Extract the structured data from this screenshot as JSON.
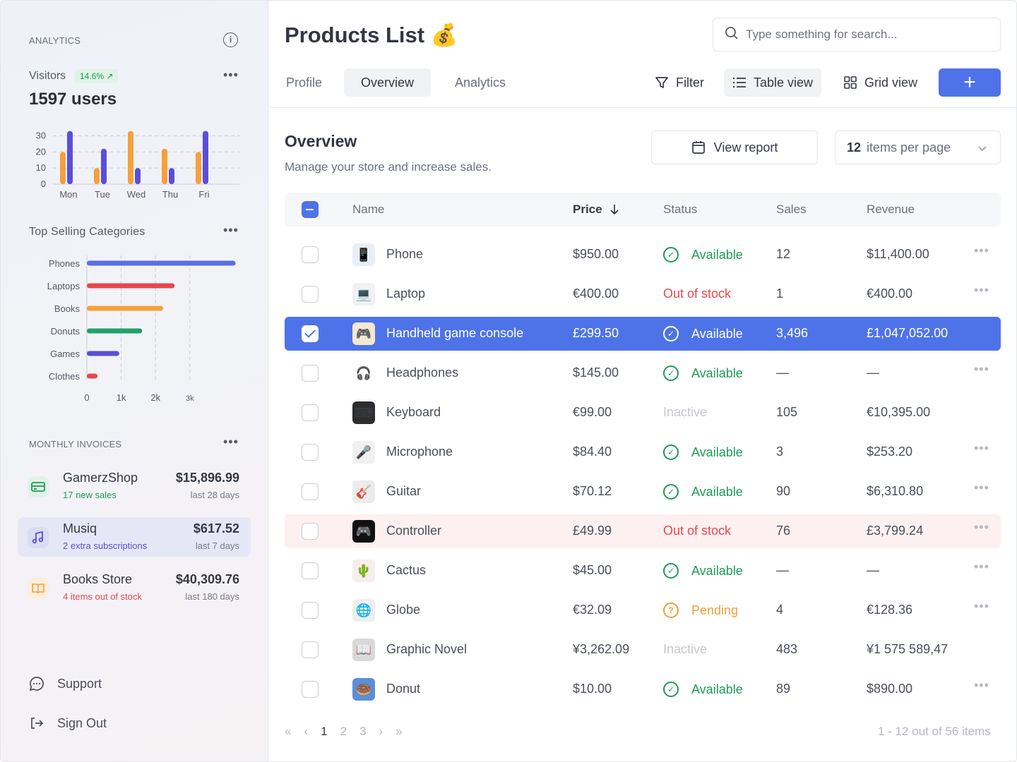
{
  "sidebar": {
    "analytics_title": "ANALYTICS",
    "visitors_label": "Visitors",
    "visitors_change": "14.6% ↗",
    "visitors_value": "1597 users",
    "categories_title": "Top Selling Categories",
    "invoices_title": "MONTHLY INVOICES",
    "invoices": [
      {
        "name": "GamerzShop",
        "sub": "17 new sales",
        "amount": "$15,896.99",
        "period": "last 28 days",
        "sub_color": "#1f9a56",
        "icon": "credit-card-icon"
      },
      {
        "name": "Musiq",
        "sub": "2 extra subscriptions",
        "amount": "$617.52",
        "period": "last 7 days",
        "sub_color": "#5b4fd6",
        "icon": "music-note-icon"
      },
      {
        "name": "Books Store",
        "sub": "4 items out of stock",
        "amount": "$40,309.76",
        "period": "last 180 days",
        "sub_color": "#e5484d",
        "icon": "book-icon"
      }
    ],
    "support_label": "Support",
    "signout_label": "Sign Out"
  },
  "chart_data": [
    {
      "type": "bar",
      "categories": [
        "Mon",
        "Tue",
        "Wed",
        "Thu",
        "Fri"
      ],
      "series": [
        {
          "values": [
            20,
            10,
            33,
            22,
            20
          ],
          "color": "#f5a03c"
        },
        {
          "values": [
            33,
            22,
            10,
            10,
            33
          ],
          "color": "#5b4fd6"
        }
      ],
      "yticks": [
        0,
        10,
        20,
        30
      ],
      "ylim": [
        0,
        35
      ],
      "grid": true
    },
    {
      "type": "bar",
      "orientation": "horizontal",
      "categories": [
        "Phones",
        "Laptops",
        "Books",
        "Donuts",
        "Games",
        "Clothes"
      ],
      "values": [
        3900,
        2300,
        2000,
        1450,
        850,
        280
      ],
      "colors": [
        "#5b6ee8",
        "#e5484d",
        "#f5a03c",
        "#22a06b",
        "#5b4fd6",
        "#e5484d"
      ],
      "xticks": [
        "0",
        "1k",
        "2k",
        "3k"
      ],
      "xlim": [
        0,
        4000
      ],
      "grid": true
    }
  ],
  "main": {
    "title": "Products List 💰",
    "search_placeholder": "Type something for search...",
    "tabs": [
      "Profile",
      "Overview",
      "Analytics"
    ],
    "filter_label": "Filter",
    "table_view_label": "Table view",
    "grid_view_label": "Grid view",
    "add_label": "+",
    "overview_title": "Overview",
    "overview_subtitle": "Manage your store and increase sales.",
    "view_report_label": "View report",
    "per_page_count": "12",
    "per_page_label": "items per page",
    "columns": {
      "name": "Name",
      "price": "Price",
      "status": "Status",
      "sales": "Sales",
      "revenue": "Revenue"
    },
    "rows": [
      {
        "name": "Phone",
        "price": "$950.00",
        "status": "Available",
        "status_type": "available",
        "sales": "12",
        "revenue": "$11,400.00",
        "thumb": "📱",
        "thumb_bg": "#e8eef8"
      },
      {
        "name": "Laptop",
        "price": "€400.00",
        "status": "Out of stock",
        "status_type": "out",
        "sales": "1",
        "revenue": "€400.00",
        "thumb": "💻",
        "thumb_bg": "#f1f1f1"
      },
      {
        "name": "Handheld game console",
        "price": "£299.50",
        "status": "Available",
        "status_type": "available",
        "sales": "3,496",
        "revenue": "£1,047,052.00",
        "thumb": "🎮",
        "thumb_bg": "#f3e8d0"
      },
      {
        "name": "Headphones",
        "price": "$145.00",
        "status": "Available",
        "status_type": "available",
        "sales": "—",
        "revenue": "—",
        "thumb": "🎧",
        "thumb_bg": "#ffffff"
      },
      {
        "name": "Keyboard",
        "price": "€99.00",
        "status": "Inactive",
        "status_type": "inactive",
        "sales": "105",
        "revenue": "€10,395.00",
        "thumb": "⌨",
        "thumb_bg": "#2d2d2d"
      },
      {
        "name": "Microphone",
        "price": "$84.40",
        "status": "Available",
        "status_type": "available",
        "sales": "3",
        "revenue": "$253.20",
        "thumb": "🎤",
        "thumb_bg": "#f0f0f0"
      },
      {
        "name": "Guitar",
        "price": "$70.12",
        "status": "Available",
        "status_type": "available",
        "sales": "90",
        "revenue": "$6,310.80",
        "thumb": "🎸",
        "thumb_bg": "#ececec"
      },
      {
        "name": "Controller",
        "price": "£49.99",
        "status": "Out of stock",
        "status_type": "out",
        "sales": "76",
        "revenue": "£3,799.24",
        "thumb": "🎮",
        "thumb_bg": "#111111"
      },
      {
        "name": "Cactus",
        "price": "$45.00",
        "status": "Available",
        "status_type": "available",
        "sales": "—",
        "revenue": "—",
        "thumb": "🌵",
        "thumb_bg": "#f6eeee"
      },
      {
        "name": "Globe",
        "price": "€32.09",
        "status": "Pending",
        "status_type": "pending",
        "sales": "4",
        "revenue": "€128.36",
        "thumb": "🌐",
        "thumb_bg": "#eeeeee"
      },
      {
        "name": "Graphic Novel",
        "price": "¥3,262.09",
        "status": "Inactive",
        "status_type": "inactive",
        "sales": "483",
        "revenue": "¥1 575 589,47",
        "thumb": "📖",
        "thumb_bg": "#d9d9d9"
      },
      {
        "name": "Donut",
        "price": "$10.00",
        "status": "Available",
        "status_type": "available",
        "sales": "89",
        "revenue": "$890.00",
        "thumb": "🍩",
        "thumb_bg": "#5b8fd8"
      }
    ],
    "pagination": {
      "pages": [
        "1",
        "2",
        "3"
      ],
      "current": "1",
      "info": "1 - 12 out of 56 items"
    }
  }
}
